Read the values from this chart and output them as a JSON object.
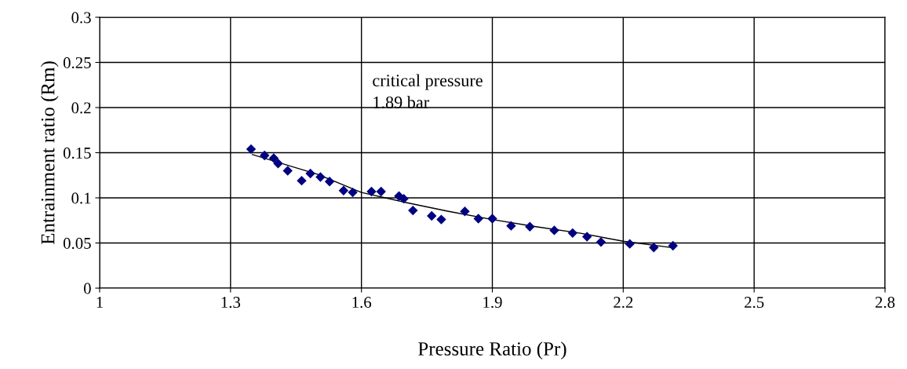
{
  "chart_data": {
    "type": "scatter",
    "xlabel": "Pressure Ratio (Pr)",
    "ylabel": "Entrainment ratio (Rm)",
    "xlim": [
      1,
      2.8
    ],
    "xticks": [
      1,
      1.3,
      1.6,
      1.9,
      2.2,
      2.5,
      2.8
    ],
    "ylim": [
      0,
      0.3
    ],
    "yticks": [
      0,
      0.05,
      0.1,
      0.15,
      0.2,
      0.25,
      0.3
    ],
    "grid": true,
    "annotations": [
      "critical pressure\n1.89 bar"
    ],
    "series": [
      {
        "color": "#000080",
        "marker": "diamond",
        "x": [
          1.347,
          1.378,
          1.399,
          1.409,
          1.431,
          1.463,
          1.483,
          1.506,
          1.527,
          1.559,
          1.58,
          1.623,
          1.645,
          1.686,
          1.697,
          1.718,
          1.761,
          1.783,
          1.837,
          1.868,
          1.9,
          1.943,
          1.986,
          2.042,
          2.084,
          2.117,
          2.149,
          2.215,
          2.27,
          2.314
        ],
        "values": [
          0.154,
          0.147,
          0.144,
          0.138,
          0.13,
          0.119,
          0.127,
          0.123,
          0.118,
          0.108,
          0.106,
          0.107,
          0.107,
          0.102,
          0.099,
          0.086,
          0.08,
          0.076,
          0.085,
          0.077,
          0.077,
          0.069,
          0.068,
          0.064,
          0.061,
          0.057,
          0.051,
          0.049,
          0.045,
          0.047
        ]
      },
      {
        "type": "line",
        "color": "#000000",
        "x": [
          1.35,
          1.5,
          1.6,
          1.7,
          1.8,
          1.9,
          2.0,
          2.1,
          2.2,
          2.31
        ],
        "values": [
          0.148,
          0.126,
          0.106,
          0.095,
          0.085,
          0.076,
          0.068,
          0.061,
          0.052,
          0.045
        ]
      }
    ]
  }
}
